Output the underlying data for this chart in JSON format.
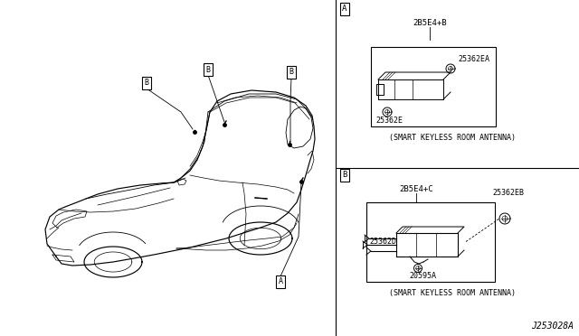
{
  "bg_color": "#ffffff",
  "line_color": "#000000",
  "fig_width": 6.4,
  "fig_height": 3.72,
  "diagram_id": "J253028A",
  "section_A_label": "A",
  "section_B_label": "B",
  "section_A_caption": "(SMART KEYLESS ROOM ANTENNA)",
  "section_B_caption": "(SMART KEYLESS ROOM ANTENNA)",
  "part_A_group": "2B5E4+B",
  "part_A_1": "25362EA",
  "part_A_2": "25362E",
  "part_B_group": "2B5E4+C",
  "part_B_1": "25362EB",
  "part_B_2": "25362D",
  "part_B_3": "20595A",
  "car_label_A": "A",
  "car_label_B": "B"
}
